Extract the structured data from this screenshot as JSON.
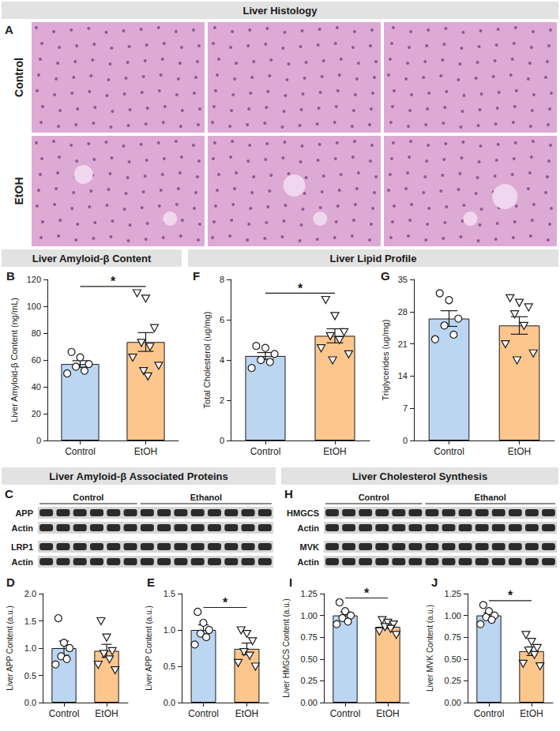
{
  "headers": [
    "Liver Histology",
    "Liver Amyloid-β Content",
    "Liver Lipid Profile",
    "Liver Amyloid-β Associated Proteins",
    "Liver Cholesterol Synthesis"
  ],
  "histology": {
    "panel": "A",
    "rows": [
      "Control",
      "EtOH"
    ],
    "images_per_row": 3
  },
  "blots": [
    {
      "panel": "C",
      "groups": [
        {
          "label": "Control",
          "lanes": 6
        },
        {
          "label": "Ethanol",
          "lanes": 8
        }
      ],
      "rows": [
        "APP",
        "Actin",
        "LRP1",
        "Actin"
      ]
    },
    {
      "panel": "H",
      "groups": [
        {
          "label": "Control",
          "lanes": 6
        },
        {
          "label": "Ethanol",
          "lanes": 8
        }
      ],
      "rows": [
        "HMGCS",
        "Actin",
        "MVK",
        "Actin"
      ]
    }
  ],
  "chart_data": [
    {
      "panel": "B",
      "type": "bar",
      "y_label": "Liver Amyloid-β Content (ng/mL)",
      "categories": [
        "Control",
        "EtOH"
      ],
      "values": [
        57,
        73.4
      ],
      "errors": [
        2.5,
        7.0
      ],
      "colors": [
        "#bcd6f2",
        "#fcc68d"
      ],
      "points": [
        {
          "marker": "circle",
          "values": [
            66,
            62,
            57,
            55,
            52,
            50
          ]
        },
        {
          "marker": "triangle-down",
          "values": [
            110,
            106,
            84,
            73,
            70,
            62,
            56,
            52,
            48
          ]
        }
      ],
      "ylim": [
        0,
        120
      ],
      "yticks": [
        0,
        20,
        40,
        60,
        80,
        100,
        120
      ],
      "significance": "*",
      "grid": false
    },
    {
      "panel": "F",
      "type": "bar",
      "y_label": "Total Cholesterol (ug/mg)",
      "categories": [
        "Control",
        "EtOH"
      ],
      "values": [
        4.2,
        5.2
      ],
      "errors": [
        0.17,
        0.35
      ],
      "colors": [
        "#bcd6f2",
        "#fcc68d"
      ],
      "points": [
        {
          "marker": "circle",
          "values": [
            4.7,
            4.6,
            4.3,
            4.0,
            3.9,
            3.6
          ]
        },
        {
          "marker": "triangle-down",
          "values": [
            7.0,
            6.2,
            5.4,
            5.2,
            5.0,
            4.6,
            4.3,
            4.0
          ]
        }
      ],
      "ylim": [
        0,
        8
      ],
      "yticks": [
        0,
        2,
        4,
        6,
        8
      ],
      "significance": "*",
      "grid": false
    },
    {
      "panel": "G",
      "type": "bar",
      "y_label": "Triglycerides (ug/mg)",
      "categories": [
        "Control",
        "EtOH"
      ],
      "values": [
        26.5,
        25.0
      ],
      "errors": [
        1.7,
        1.9
      ],
      "colors": [
        "#bcd6f2",
        "#fcc68d"
      ],
      "points": [
        {
          "marker": "circle",
          "values": [
            32,
            30.5,
            26.5,
            25,
            23,
            22
          ]
        },
        {
          "marker": "triangle-down",
          "values": [
            31,
            30,
            29,
            27.5,
            25,
            21,
            19,
            17.5
          ]
        }
      ],
      "ylim": [
        0,
        35
      ],
      "yticks": [
        0,
        7,
        14,
        21,
        28,
        35
      ],
      "grid": false
    },
    {
      "panel": "D",
      "type": "bar",
      "y_label": "Liver APP Content (a.u.)",
      "categories": [
        "Control",
        "EtOH"
      ],
      "values": [
        1.0,
        0.95
      ],
      "errors": [
        0.13,
        0.12
      ],
      "colors": [
        "#bcd6f2",
        "#fcc68d"
      ],
      "points": [
        {
          "marker": "circle",
          "values": [
            1.55,
            1.1,
            1.0,
            0.85,
            0.8,
            0.7
          ]
        },
        {
          "marker": "triangle-down",
          "values": [
            1.5,
            1.2,
            0.95,
            0.9,
            0.8,
            0.7,
            0.6
          ]
        }
      ],
      "ylim": [
        0,
        2
      ],
      "yticks": [
        {
          "value": 0,
          "label": "0.0"
        },
        {
          "value": 0.5,
          "label": "0.5"
        },
        {
          "value": 1,
          "label": "1.0"
        },
        {
          "value": 1.5,
          "label": "1.5"
        },
        {
          "value": 2,
          "label": "2.0"
        }
      ],
      "grid": false
    },
    {
      "panel": "E",
      "type": "bar",
      "y_label": "Liver APP Content (a.u.)",
      "categories": [
        "Control",
        "EtOH"
      ],
      "values": [
        1.0,
        0.74
      ],
      "errors": [
        0.07,
        0.08
      ],
      "colors": [
        "#bcd6f2",
        "#fcc68d"
      ],
      "points": [
        {
          "marker": "circle",
          "values": [
            1.25,
            1.1,
            1.0,
            0.95,
            0.9,
            0.8
          ]
        },
        {
          "marker": "triangle-down",
          "values": [
            1.0,
            0.95,
            0.85,
            0.7,
            0.65,
            0.55,
            0.5
          ]
        }
      ],
      "ylim": [
        0,
        1.5
      ],
      "yticks": [
        {
          "value": 0,
          "label": "0.0"
        },
        {
          "value": 0.5,
          "label": "0.5"
        },
        {
          "value": 1,
          "label": "1.0"
        },
        {
          "value": 1.5,
          "label": "1.5"
        }
      ],
      "significance": "*",
      "grid": false
    },
    {
      "panel": "I",
      "type": "bar",
      "y_label": "Liver HMGCS Content (a.u.)",
      "categories": [
        "Control",
        "EtOH"
      ],
      "values": [
        1.0,
        0.87
      ],
      "errors": [
        0.04,
        0.02
      ],
      "colors": [
        "#bcd6f2",
        "#fcc68d"
      ],
      "points": [
        {
          "marker": "circle",
          "values": [
            1.15,
            1.05,
            1.0,
            0.97,
            0.93,
            0.9
          ]
        },
        {
          "marker": "triangle-down",
          "values": [
            0.95,
            0.92,
            0.9,
            0.87,
            0.85,
            0.82,
            0.78
          ]
        }
      ],
      "ylim": [
        0,
        1.25
      ],
      "yticks": [
        {
          "value": 0,
          "label": "0.00"
        },
        {
          "value": 0.25,
          "label": "0.25"
        },
        {
          "value": 0.5,
          "label": "0.50"
        },
        {
          "value": 0.75,
          "label": "0.75"
        },
        {
          "value": 1,
          "label": "1.00"
        },
        {
          "value": 1.25,
          "label": "1.25"
        }
      ],
      "significance": "*",
      "grid": false
    },
    {
      "panel": "J",
      "type": "bar",
      "y_label": "Liver MVK Content (a.u.)",
      "categories": [
        "Control",
        "EtOH"
      ],
      "values": [
        1.0,
        0.59
      ],
      "errors": [
        0.03,
        0.05
      ],
      "colors": [
        "#bcd6f2",
        "#fcc68d"
      ],
      "points": [
        {
          "marker": "circle",
          "values": [
            1.12,
            1.05,
            1.0,
            0.98,
            0.95,
            0.9
          ]
        },
        {
          "marker": "triangle-down",
          "values": [
            0.78,
            0.7,
            0.63,
            0.6,
            0.55,
            0.45,
            0.42
          ]
        }
      ],
      "ylim": [
        0,
        1.25
      ],
      "yticks": [
        {
          "value": 0,
          "label": "0.00"
        },
        {
          "value": 0.25,
          "label": "0.25"
        },
        {
          "value": 0.5,
          "label": "0.50"
        },
        {
          "value": 0.75,
          "label": "0.75"
        },
        {
          "value": 1,
          "label": "1.00"
        },
        {
          "value": 1.25,
          "label": "1.25"
        }
      ],
      "significance": "*",
      "grid": false
    }
  ]
}
